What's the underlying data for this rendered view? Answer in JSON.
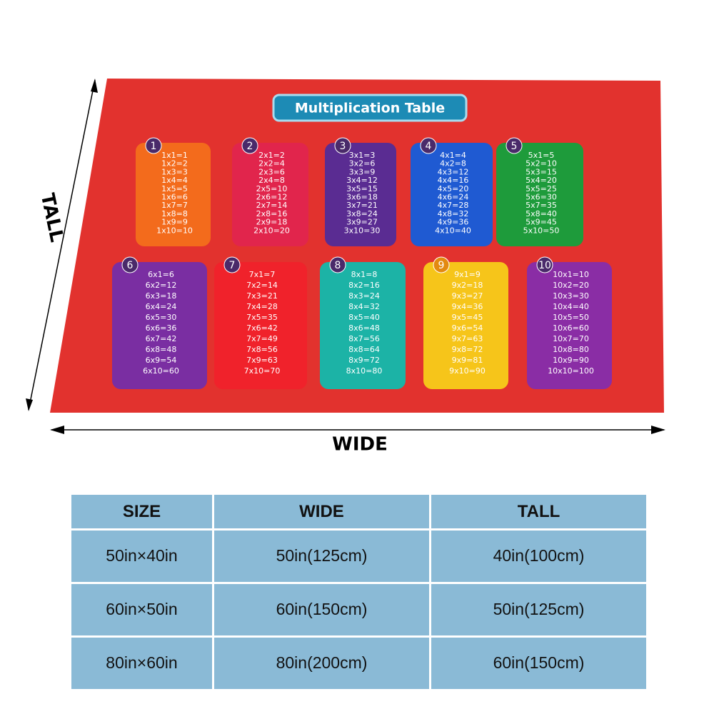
{
  "title": "Multiplication Table",
  "cards": [
    {
      "number": "1",
      "color": "#f36b1c",
      "lines": [
        "1x1=1",
        "1x2=2",
        "1x3=3",
        "1x4=4",
        "1x5=5",
        "1x6=6",
        "1x7=7",
        "1x8=8",
        "1x9=9",
        "1x10=10"
      ]
    },
    {
      "number": "2",
      "color": "#e1254c",
      "lines": [
        "2x1=2",
        "2x2=4",
        "2x3=6",
        "2x4=8",
        "2x5=10",
        "2x6=12",
        "2x7=14",
        "2x8=16",
        "2x9=18",
        "2x10=20"
      ]
    },
    {
      "number": "3",
      "color": "#5a2c92",
      "lines": [
        "3x1=3",
        "3x2=6",
        "3x3=9",
        "3x4=12",
        "3x5=15",
        "3x6=18",
        "3x7=21",
        "3x8=24",
        "3x9=27",
        "3x10=30"
      ]
    },
    {
      "number": "4",
      "color": "#1f5ad2",
      "lines": [
        "4x1=4",
        "4x2=8",
        "4x3=12",
        "4x4=16",
        "4x5=20",
        "4x6=24",
        "4x7=28",
        "4x8=32",
        "4x9=36",
        "4x10=40"
      ]
    },
    {
      "number": "5",
      "color": "#1e9b3b",
      "lines": [
        "5x1=5",
        "5x2=10",
        "5x3=15",
        "5x4=20",
        "5x5=25",
        "5x6=30",
        "5x7=35",
        "5x8=40",
        "5x9=45",
        "5x10=50"
      ]
    },
    {
      "number": "6",
      "color": "#7a2ea2",
      "lines": [
        "6x1=6",
        "6x2=12",
        "6x3=18",
        "6x4=24",
        "6x5=30",
        "6x6=36",
        "6x7=42",
        "6x8=48",
        "6x9=54",
        "6x10=60"
      ]
    },
    {
      "number": "7",
      "color": "#f0222b",
      "lines": [
        "7x1=7",
        "7x2=14",
        "7x3=21",
        "7x4=28",
        "7x5=35",
        "7x6=42",
        "7x7=49",
        "7x8=56",
        "7x9=63",
        "7x10=70"
      ]
    },
    {
      "number": "8",
      "color": "#1cb3a6",
      "lines": [
        "8x1=8",
        "8x2=16",
        "8x3=24",
        "8x4=32",
        "8x5=40",
        "8x6=48",
        "8x7=56",
        "8x8=64",
        "8x9=72",
        "8x10=80"
      ]
    },
    {
      "number": "9",
      "color": "#f6c51a",
      "lines": [
        "9x1=9",
        "9x2=18",
        "9x3=27",
        "9x4=36",
        "9x5=45",
        "9x6=54",
        "9x7=63",
        "9x8=72",
        "9x9=81",
        "9x10=90"
      ]
    },
    {
      "number": "10",
      "color": "#8a2da5",
      "lines": [
        "10x1=10",
        "10x2=20",
        "10x3=30",
        "10x4=40",
        "10x5=50",
        "10x6=60",
        "10x7=70",
        "10x8=80",
        "10x9=90",
        "10x10=100"
      ]
    }
  ],
  "tall_label": "TALL",
  "wide_label": "WIDE",
  "table": {
    "header": [
      "SIZE",
      "WIDE",
      "TALL"
    ],
    "rows": [
      [
        "50in×40in",
        "50in(125cm)",
        "40in(100cm)"
      ],
      [
        "60in×50in",
        "60in(150cm)",
        "50in(125cm)"
      ],
      [
        "80in×60in",
        "80in(200cm)",
        "60in(150cm)"
      ]
    ]
  }
}
